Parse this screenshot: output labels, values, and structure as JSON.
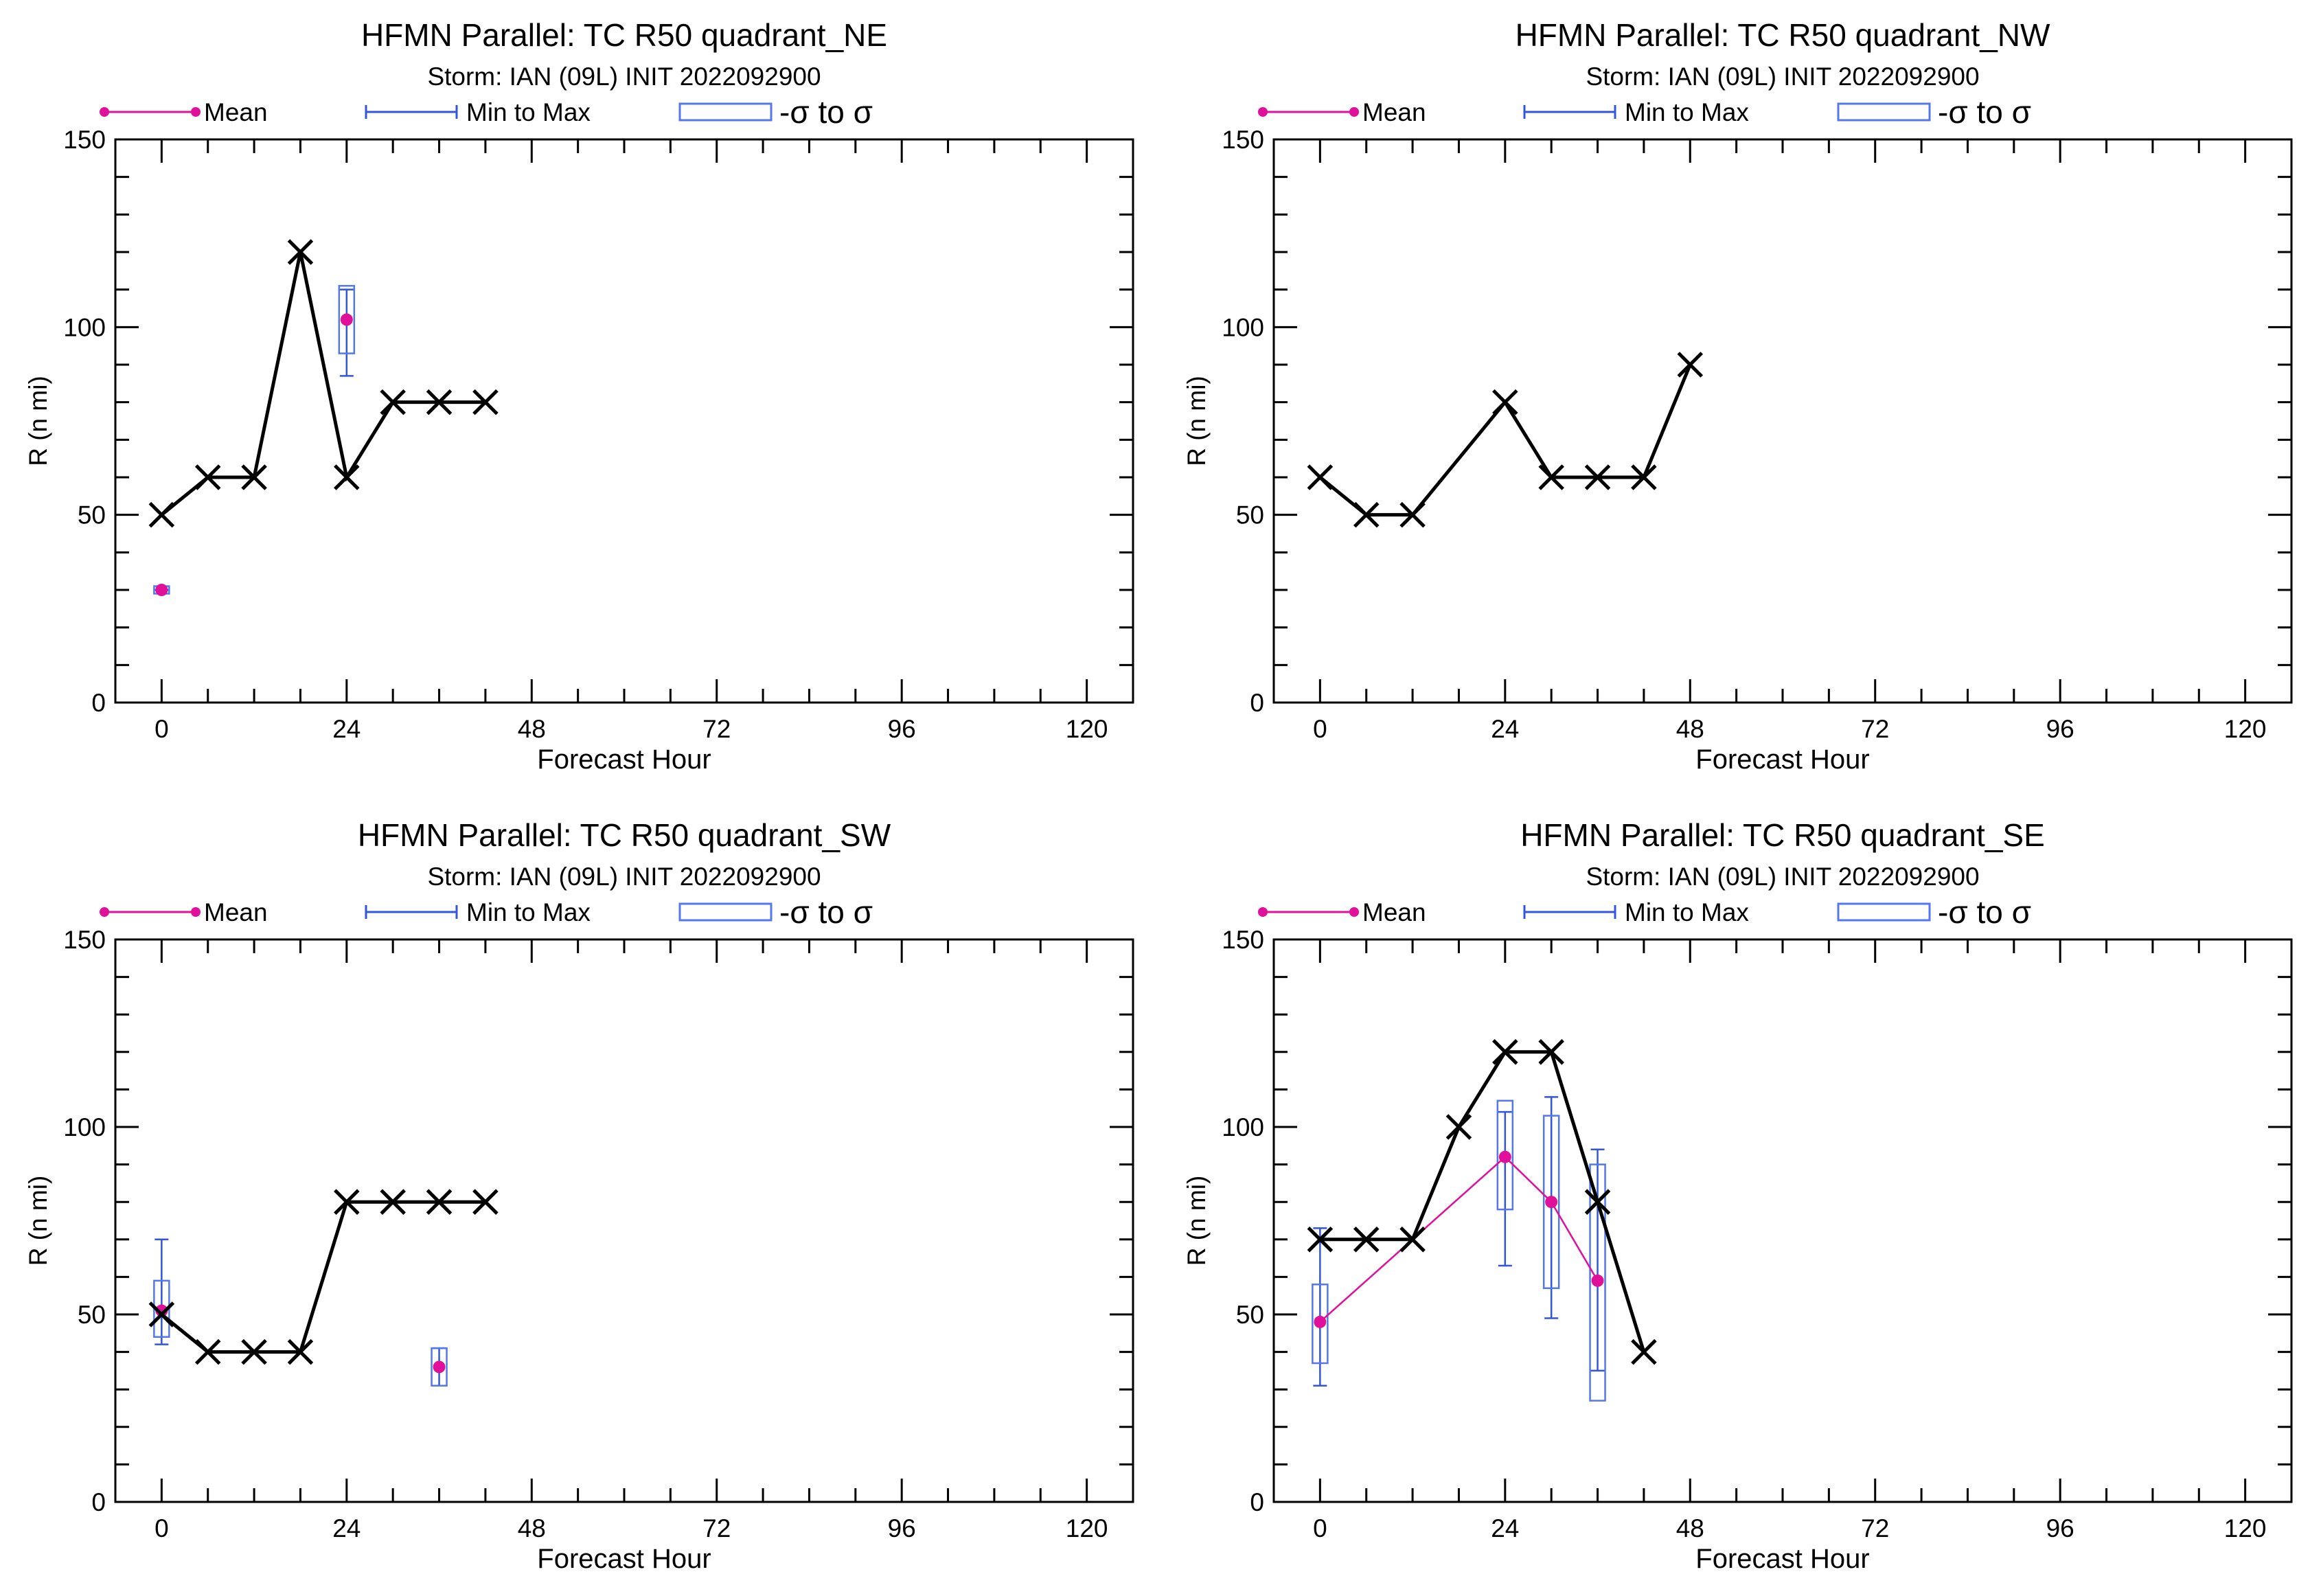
{
  "chart_data": [
    {
      "type": "line",
      "title": "HFMN Parallel: TC  R50 quadrant_NE",
      "subtitle": "Storm: IAN (09L) INIT 2022092900",
      "xlabel": "Forecast Hour",
      "ylabel": "R (n mi)",
      "xlim": [
        -6,
        126
      ],
      "ylim": [
        0,
        150
      ],
      "xticks": [
        "0",
        "24",
        "48",
        "72",
        "96",
        "120"
      ],
      "yticks": [
        "0",
        "50",
        "100",
        "150"
      ],
      "grid": false,
      "legend": {
        "placement": "top",
        "entries": [
          "Mean",
          "Min to Max",
          "-σ to σ"
        ]
      },
      "best_track": {
        "x": [
          0,
          6,
          12,
          18,
          24,
          30,
          36,
          42
        ],
        "y": [
          50,
          60,
          60,
          120,
          60,
          80,
          80,
          80
        ]
      },
      "ensemble": [
        {
          "x": 0,
          "mean": 30,
          "min": 30,
          "max": 30,
          "sd_low": 29,
          "sd_high": 31
        },
        {
          "x": 24,
          "mean": 102,
          "min": 87,
          "max": 110,
          "sd_low": 93,
          "sd_high": 111
        }
      ],
      "mean_line": false
    },
    {
      "type": "line",
      "title": "HFMN Parallel: TC  R50 quadrant_NW",
      "subtitle": "Storm: IAN (09L) INIT 2022092900",
      "xlabel": "Forecast Hour",
      "ylabel": "R (n mi)",
      "xlim": [
        -6,
        126
      ],
      "ylim": [
        0,
        150
      ],
      "xticks": [
        "0",
        "24",
        "48",
        "72",
        "96",
        "120"
      ],
      "yticks": [
        "0",
        "50",
        "100",
        "150"
      ],
      "grid": false,
      "legend": {
        "placement": "top",
        "entries": [
          "Mean",
          "Min to Max",
          "-σ to σ"
        ]
      },
      "best_track": {
        "x": [
          0,
          6,
          12,
          24,
          30,
          36,
          42,
          48
        ],
        "y": [
          60,
          50,
          50,
          80,
          60,
          60,
          60,
          90
        ]
      },
      "ensemble": [],
      "mean_line": false
    },
    {
      "type": "line",
      "title": "HFMN Parallel: TC  R50 quadrant_SW",
      "subtitle": "Storm: IAN (09L) INIT 2022092900",
      "xlabel": "Forecast Hour",
      "ylabel": "R (n mi)",
      "xlim": [
        -6,
        126
      ],
      "ylim": [
        0,
        150
      ],
      "xticks": [
        "0",
        "24",
        "48",
        "72",
        "96",
        "120"
      ],
      "yticks": [
        "0",
        "50",
        "100",
        "150"
      ],
      "grid": false,
      "legend": {
        "placement": "top",
        "entries": [
          "Mean",
          "Min to Max",
          "-σ to σ"
        ]
      },
      "best_track": {
        "x": [
          0,
          6,
          12,
          18,
          24,
          30,
          36,
          42
        ],
        "y": [
          50,
          40,
          40,
          40,
          80,
          80,
          80,
          80
        ]
      },
      "ensemble": [
        {
          "x": 0,
          "mean": 51,
          "min": 42,
          "max": 70,
          "sd_low": 44,
          "sd_high": 59
        },
        {
          "x": 36,
          "mean": 36,
          "min": 31,
          "max": 41,
          "sd_low": 31,
          "sd_high": 41
        }
      ],
      "mean_line": false
    },
    {
      "type": "line",
      "title": "HFMN Parallel: TC  R50 quadrant_SE",
      "subtitle": "Storm: IAN (09L) INIT 2022092900",
      "xlabel": "Forecast Hour",
      "ylabel": "R (n mi)",
      "xlim": [
        -6,
        126
      ],
      "ylim": [
        0,
        150
      ],
      "xticks": [
        "0",
        "24",
        "48",
        "72",
        "96",
        "120"
      ],
      "yticks": [
        "0",
        "50",
        "100",
        "150"
      ],
      "grid": false,
      "legend": {
        "placement": "top",
        "entries": [
          "Mean",
          "Min to Max",
          "-σ to σ"
        ]
      },
      "best_track": {
        "x": [
          0,
          6,
          12,
          18,
          24,
          30,
          36,
          42
        ],
        "y": [
          70,
          70,
          70,
          100,
          120,
          120,
          80,
          40
        ]
      },
      "ensemble": [
        {
          "x": 0,
          "mean": 48,
          "min": 31,
          "max": 73,
          "sd_low": 37,
          "sd_high": 58
        },
        {
          "x": 24,
          "mean": 92,
          "min": 63,
          "max": 104,
          "sd_low": 78,
          "sd_high": 107
        },
        {
          "x": 30,
          "mean": 80,
          "min": 49,
          "max": 108,
          "sd_low": 57,
          "sd_high": 103
        },
        {
          "x": 36,
          "mean": 59,
          "min": 35,
          "max": 94,
          "sd_low": 27,
          "sd_high": 90
        }
      ],
      "mean_line": true
    }
  ],
  "colors": {
    "mean": "#e0109a",
    "min_max": "#3355dd",
    "sigma_box": "#5577ee",
    "best_track": "#000000"
  }
}
